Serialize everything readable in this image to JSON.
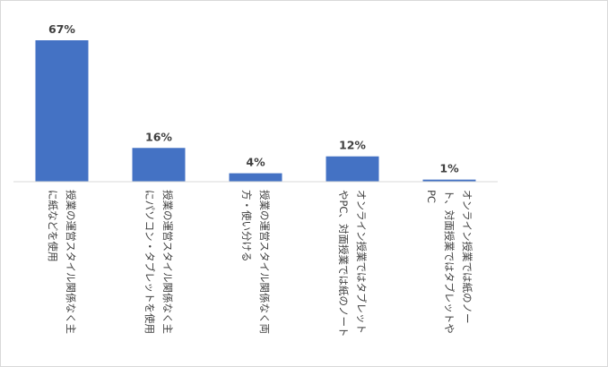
{
  "chart_data": {
    "type": "bar",
    "title": "",
    "xlabel": "",
    "ylabel": "",
    "ylim": [
      0,
      70
    ],
    "grid": false,
    "legend": "none",
    "bar_color": "#4472c4",
    "categories": [
      "授業の運営スタイル関係なく主に紙などを使用",
      "授業の運営スタイル関係なく主にパソコン・タブレットを使用",
      "授業の運営スタイル関係なく両方・使い分ける",
      "オンライン授業ではタブレットやPC、対面授業では紙のノート",
      "オンライン授業では紙のノート、対面授業ではタブレットやPC"
    ],
    "category_lines": [
      [
        "授業の運営スタイル関係なく主",
        "に紙などを使用"
      ],
      [
        "授業の運営スタイル関係なく主",
        "にパソコン・タブレットを使用"
      ],
      [
        "授業の運営スタイル関係なく両",
        "方・使い分ける"
      ],
      [
        "オンライン授業ではタブレット",
        "やPC、対面授業では紙のノート"
      ],
      [
        "オンライン授業では紙のノー",
        "ト、対面授業ではタブレットや",
        "PC"
      ]
    ],
    "values": [
      67,
      16,
      4,
      12,
      1
    ],
    "data_labels": [
      "67%",
      "16%",
      "4%",
      "12%",
      "1%"
    ]
  }
}
